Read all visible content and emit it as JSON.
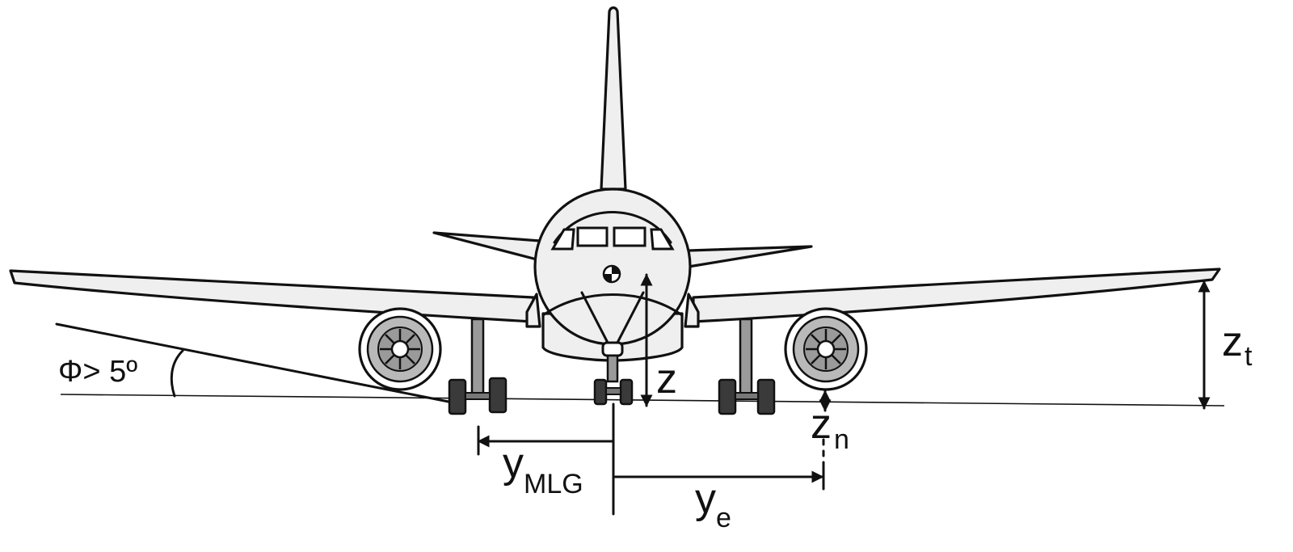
{
  "labels": {
    "angle": "Φ> 5º",
    "z": "z",
    "z_t_main": "z",
    "z_t_sub": "t",
    "z_n_main": "z",
    "z_n_sub": "n",
    "y_mlg_main": "y",
    "y_mlg_sub": "MLG",
    "y_e_main": "y",
    "y_e_sub": "e"
  }
}
